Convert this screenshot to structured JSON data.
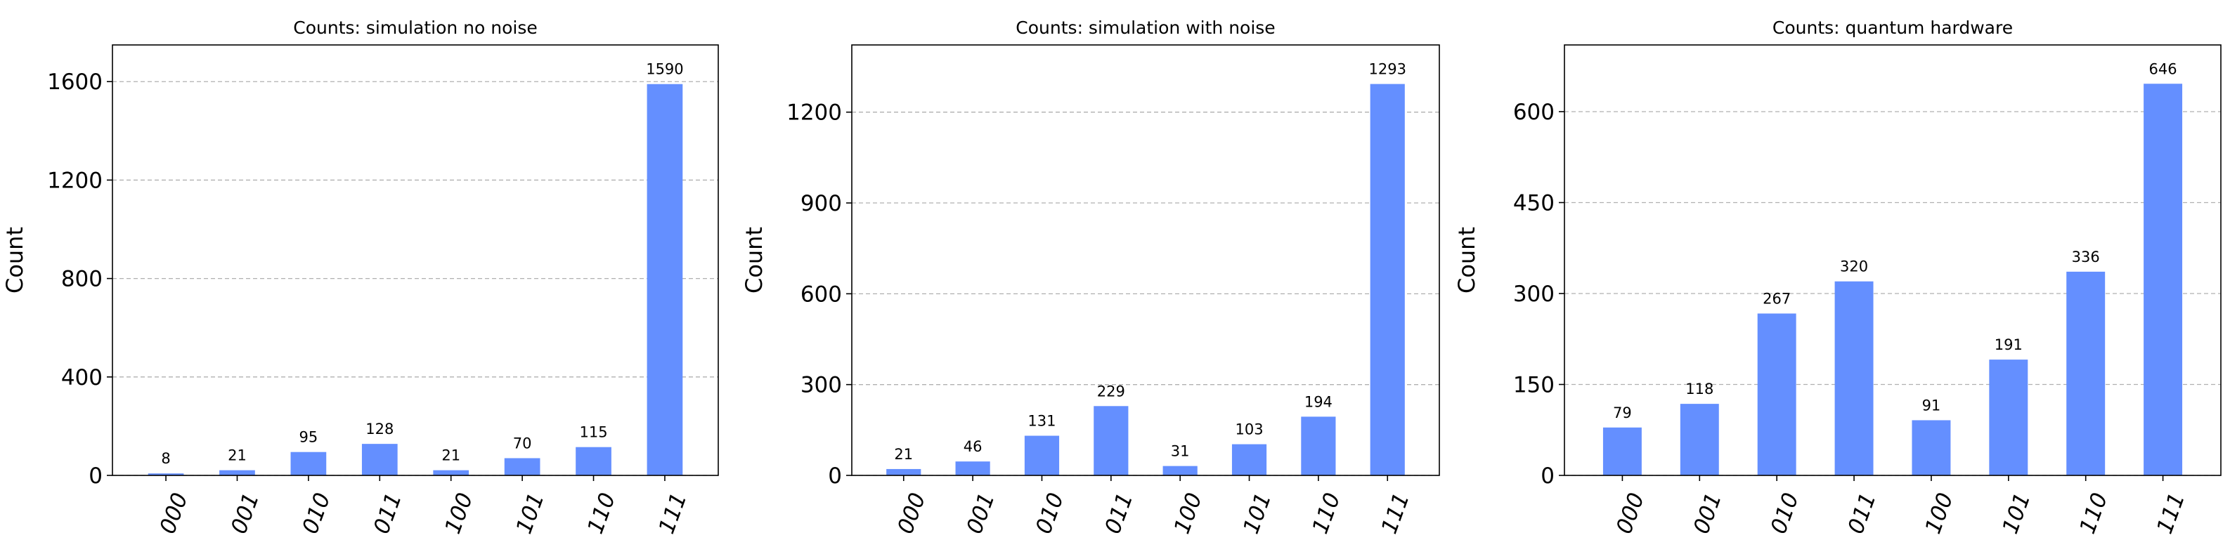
{
  "chart_data": [
    {
      "type": "bar",
      "title": "Counts: simulation no noise",
      "ylabel": "Count",
      "xlabel": "",
      "categories": [
        "000",
        "001",
        "010",
        "011",
        "100",
        "101",
        "110",
        "111"
      ],
      "values": [
        8,
        21,
        95,
        128,
        21,
        70,
        115,
        1590
      ],
      "yticks": [
        0,
        400,
        800,
        1200,
        1600
      ],
      "ylim": [
        0,
        1749
      ],
      "grid": true,
      "color": "#648fff"
    },
    {
      "type": "bar",
      "title": "Counts: simulation with noise",
      "ylabel": "Count",
      "xlabel": "",
      "categories": [
        "000",
        "001",
        "010",
        "011",
        "100",
        "101",
        "110",
        "111"
      ],
      "values": [
        21,
        46,
        131,
        229,
        31,
        103,
        194,
        1293
      ],
      "yticks": [
        0,
        300,
        600,
        900,
        1200
      ],
      "ylim": [
        0,
        1422
      ],
      "grid": true,
      "color": "#648fff"
    },
    {
      "type": "bar",
      "title": "Counts: quantum hardware",
      "ylabel": "Count",
      "xlabel": "",
      "categories": [
        "000",
        "001",
        "010",
        "011",
        "100",
        "101",
        "110",
        "111"
      ],
      "values": [
        79,
        118,
        267,
        320,
        91,
        191,
        336,
        646
      ],
      "yticks": [
        0,
        150,
        300,
        450,
        600
      ],
      "ylim": [
        0,
        710
      ],
      "grid": true,
      "color": "#648fff"
    }
  ]
}
